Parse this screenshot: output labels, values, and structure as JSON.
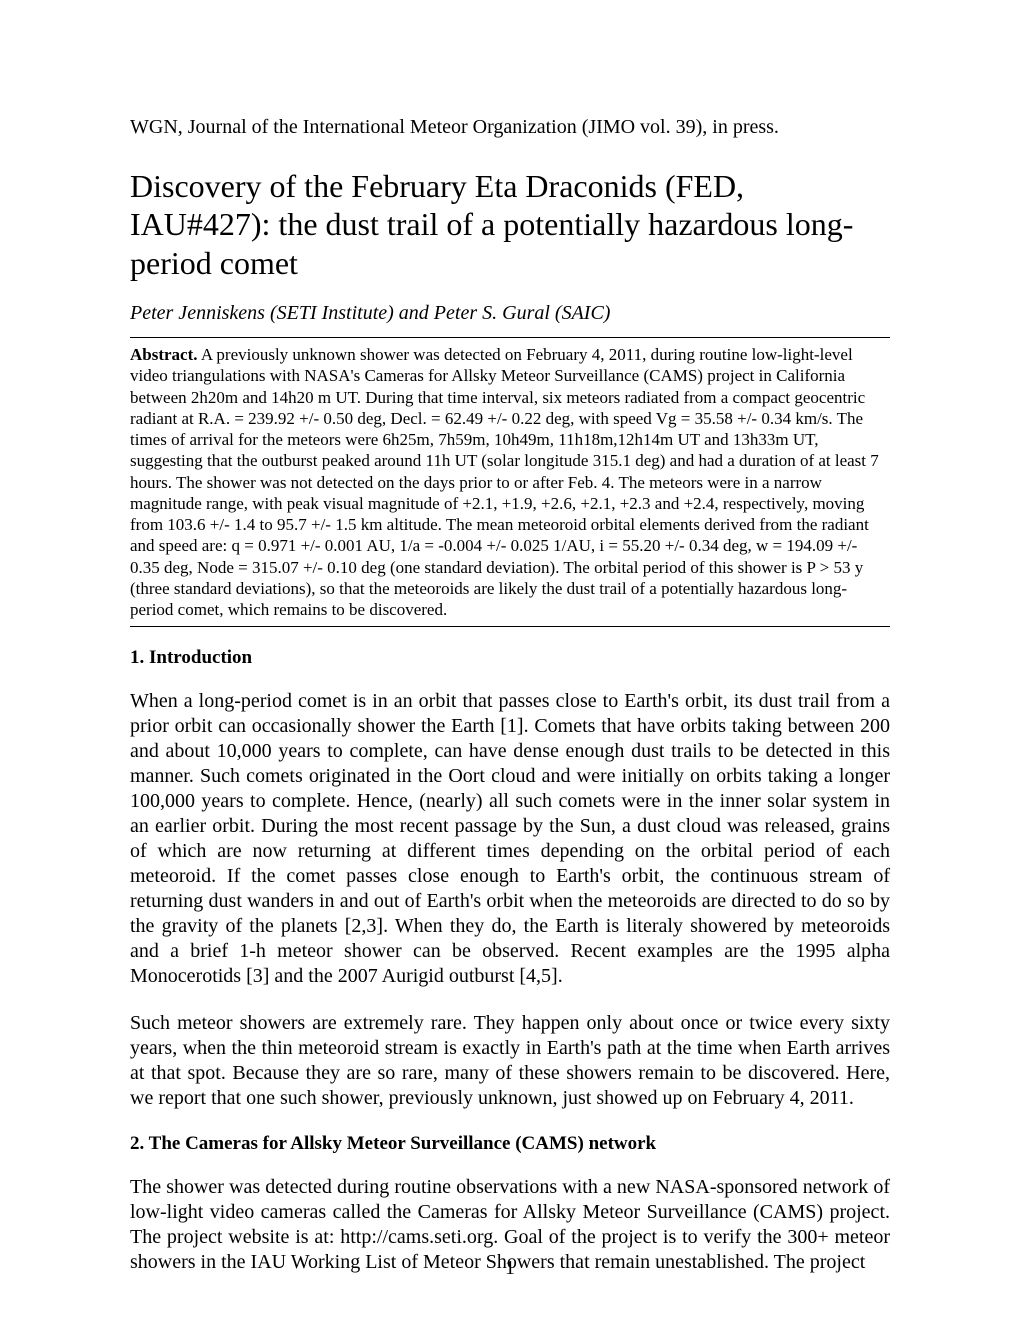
{
  "journal_ref": "WGN, Journal of the International Meteor Organization (JIMO vol. 39), in press.",
  "title": "Discovery of the February Eta Draconids (FED, IAU#427): the dust trail of a potentially hazardous long-period comet",
  "authors": "Peter Jenniskens (SETI Institute) and Peter S. Gural (SAIC)",
  "abstract_label": "Abstract.",
  "abstract_body": " A previously unknown shower was detected on February 4, 2011, during routine low-light-level video triangulations with NASA's Cameras for Allsky Meteor Surveillance (CAMS) project in California between 2h20m and 14h20 m UT. During that time interval, six meteors radiated from a compact geocentric radiant at R.A. = 239.92 +/- 0.50 deg, Decl. = 62.49 +/- 0.22 deg, with speed Vg = 35.58 +/- 0.34 km/s. The times of arrival for the meteors were 6h25m, 7h59m, 10h49m, 11h18m,12h14m UT and 13h33m UT, suggesting that the outburst peaked around 11h UT (solar longitude 315.1 deg) and had a duration of at least 7 hours. The shower was not detected on the days prior to or after Feb. 4. The meteors were in a narrow magnitude range, with peak visual magnitude of +2.1, +1.9, +2.6, +2.1, +2.3 and +2.4, respectively, moving from 103.6 +/- 1.4 to 95.7 +/- 1.5 km altitude. The mean meteoroid orbital elements derived from the radiant and  speed are: q = 0.971 +/- 0.001 AU, 1/a = -0.004 +/- 0.025 1/AU,  i = 55.20 +/- 0.34 deg, w = 194.09 +/- 0.35 deg, Node = 315.07 +/- 0.10 deg (one standard deviation). The orbital period of this shower is P > 53 y (three standard deviations), so that the meteoroids are likely the dust trail of a potentially hazardous long-period comet, which remains to be discovered.",
  "section1_heading": "1. Introduction",
  "section1_para1": "When a long-period comet is in an orbit that passes close to Earth's orbit, its dust trail from a prior orbit can occasionally shower the Earth [1]. Comets that have orbits taking between 200 and about 10,000 years to complete, can have dense enough dust trails to be detected in this manner. Such comets originated in the Oort cloud and were initially on orbits taking a longer 100,000 years to complete. Hence, (nearly) all such comets were in the inner solar system in an earlier orbit. During the most recent passage by the Sun, a dust cloud was released, grains of which are now returning at different times depending on the orbital period of each meteoroid. If the comet passes close enough to Earth's orbit, the continuous stream of returning dust wanders in and out of Earth's orbit when the meteoroids are directed to do so by the gravity of the planets [2,3]. When they do, the Earth is literaly showered by meteoroids and a brief 1-h meteor shower can be observed. Recent examples are the 1995 alpha Monocerotids [3] and the 2007 Aurigid outburst [4,5].",
  "section1_para2": "Such meteor showers are extremely rare. They happen only about once or twice every sixty years, when the thin meteoroid stream is exactly in Earth's path at the time when Earth arrives at that spot. Because they are so rare, many of these showers remain to be discovered. Here, we report that one such shower, previously unknown, just showed up on February 4, 2011.",
  "section2_heading": "2. The Cameras for Allsky Meteor Surveillance (CAMS) network",
  "section2_para1": "The shower was detected during routine observations with a new NASA-sponsored network of low-light video cameras called the Cameras for Allsky Meteor Surveillance (CAMS) project. The project website is at: http://cams.seti.org. Goal of the project is to verify the 300+ meteor showers in the IAU Working List of Meteor Showers that remain unestablished. The project",
  "page_number": "1"
}
